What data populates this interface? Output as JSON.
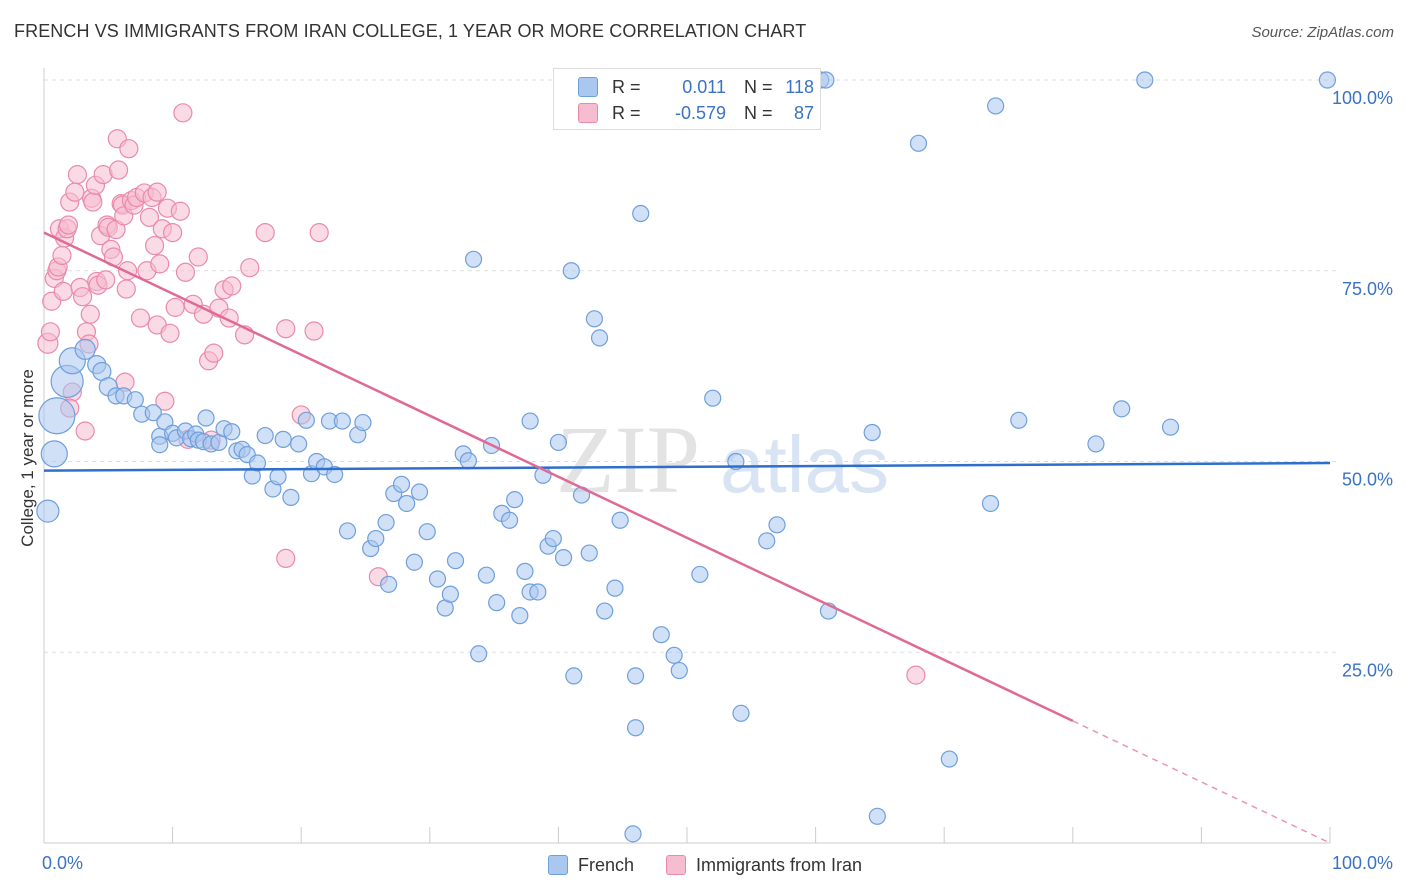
{
  "title": "FRENCH VS IMMIGRANTS FROM IRAN COLLEGE, 1 YEAR OR MORE CORRELATION CHART",
  "source": "Source: ZipAtlas.com",
  "watermark": {
    "zip": "ZIP",
    "atlas": "atlas"
  },
  "stats": {
    "french": {
      "r_label": "R =",
      "r_value": "0.011",
      "n_label": "N =",
      "n_value": "118"
    },
    "iran": {
      "r_label": "R =",
      "r_value": "-0.579",
      "n_label": "N =",
      "n_value": "87"
    }
  },
  "legend": {
    "french": "French",
    "iran": "Immigrants from Iran"
  },
  "colors": {
    "french_fill": "#a9c7ef",
    "french_stroke": "#6f9fdc",
    "french_line": "#2f6fcb",
    "iran_fill": "#f6bcd0",
    "iran_stroke": "#ea8aab",
    "iran_line": "#e06a96",
    "axis_text": "#3a72c4",
    "grid": "#dddddd"
  },
  "chart_data": {
    "type": "scatter",
    "xlabel": "",
    "ylabel": "College, 1 year or more",
    "xlim": [
      0,
      100
    ],
    "ylim": [
      0,
      100
    ],
    "x_tick_labels": [
      "0.0%",
      "100.0%"
    ],
    "y_ticks": [
      25,
      50,
      75,
      100
    ],
    "y_tick_labels": [
      "25.0%",
      "50.0%",
      "75.0%",
      "100.0%"
    ],
    "series": [
      {
        "name": "French",
        "trend": {
          "x0": 0,
          "y0": 48.8,
          "x1": 100,
          "y1": 49.8
        },
        "points": [
          [
            0.3,
            43.5,
            11
          ],
          [
            0.8,
            51,
            13
          ],
          [
            1.0,
            56,
            18
          ],
          [
            1.8,
            60.5,
            16
          ],
          [
            2.2,
            63.2,
            13
          ],
          [
            3.2,
            64.7,
            10
          ],
          [
            4.1,
            62.7,
            9
          ],
          [
            4.5,
            61.8,
            9
          ],
          [
            5.0,
            59.8,
            9
          ],
          [
            5.6,
            58.6,
            8
          ],
          [
            6.2,
            58.6,
            8
          ],
          [
            7.1,
            58.1,
            8
          ],
          [
            7.6,
            56.2,
            8
          ],
          [
            8.5,
            56.4,
            8
          ],
          [
            9.0,
            53.3,
            8
          ],
          [
            9.0,
            52.2,
            8
          ],
          [
            9.4,
            55.2,
            8
          ],
          [
            10.0,
            53.7,
            8
          ],
          [
            10.3,
            53.1,
            8
          ],
          [
            11.0,
            54.0,
            8
          ],
          [
            11.4,
            53.0,
            8
          ],
          [
            11.8,
            53.6,
            8
          ],
          [
            12.0,
            52.8,
            8
          ],
          [
            12.4,
            52.6,
            8
          ],
          [
            12.6,
            55.7,
            8
          ],
          [
            13.0,
            52.3,
            8
          ],
          [
            13.6,
            52.5,
            8
          ],
          [
            14.0,
            54.3,
            8
          ],
          [
            14.6,
            53.9,
            8
          ],
          [
            15.0,
            51.4,
            8
          ],
          [
            15.4,
            51.6,
            8
          ],
          [
            15.8,
            50.9,
            8
          ],
          [
            16.2,
            48.1,
            8
          ],
          [
            16.6,
            49.8,
            8
          ],
          [
            17.2,
            53.4,
            8
          ],
          [
            17.8,
            46.4,
            8
          ],
          [
            18.2,
            48.0,
            8
          ],
          [
            18.6,
            52.9,
            8
          ],
          [
            19.2,
            45.3,
            8
          ],
          [
            19.8,
            52.3,
            8
          ],
          [
            20.4,
            55.4,
            8
          ],
          [
            20.8,
            48.4,
            8
          ],
          [
            21.2,
            50.0,
            8
          ],
          [
            21.8,
            49.3,
            8
          ],
          [
            22.2,
            55.3,
            8
          ],
          [
            22.6,
            48.3,
            8
          ],
          [
            23.2,
            55.3,
            8
          ],
          [
            23.6,
            40.9,
            8
          ],
          [
            24.4,
            53.5,
            8
          ],
          [
            24.8,
            55.1,
            8
          ],
          [
            25.4,
            38.6,
            8
          ],
          [
            25.8,
            39.9,
            8
          ],
          [
            26.6,
            42.0,
            8
          ],
          [
            26.8,
            33.9,
            8
          ],
          [
            27.2,
            45.8,
            8
          ],
          [
            27.8,
            47.0,
            8
          ],
          [
            28.2,
            44.5,
            8
          ],
          [
            28.8,
            36.8,
            8
          ],
          [
            29.2,
            46.0,
            8
          ],
          [
            29.8,
            40.8,
            8
          ],
          [
            30.6,
            34.6,
            8
          ],
          [
            31.2,
            30.8,
            8
          ],
          [
            31.6,
            32.6,
            8
          ],
          [
            32.0,
            37.0,
            8
          ],
          [
            32.6,
            51.0,
            8
          ],
          [
            33.0,
            50.1,
            8
          ],
          [
            33.4,
            76.5,
            8
          ],
          [
            33.8,
            24.8,
            8
          ],
          [
            34.4,
            35.1,
            8
          ],
          [
            34.8,
            52.1,
            8
          ],
          [
            35.2,
            31.5,
            8
          ],
          [
            35.6,
            43.2,
            8
          ],
          [
            36.2,
            42.3,
            8
          ],
          [
            36.6,
            45.0,
            8
          ],
          [
            37.0,
            29.8,
            8
          ],
          [
            37.4,
            35.6,
            8
          ],
          [
            37.8,
            55.3,
            8
          ],
          [
            37.8,
            32.9,
            8
          ],
          [
            38.4,
            32.9,
            8
          ],
          [
            38.8,
            48.2,
            8
          ],
          [
            39.2,
            38.9,
            8
          ],
          [
            39.6,
            39.9,
            8
          ],
          [
            40.0,
            52.5,
            8
          ],
          [
            40.4,
            37.4,
            8
          ],
          [
            41.0,
            75.0,
            8
          ],
          [
            41.2,
            21.9,
            8
          ],
          [
            41.8,
            45.6,
            8
          ],
          [
            42.4,
            38.0,
            8
          ],
          [
            42.8,
            68.7,
            8
          ],
          [
            43.2,
            66.2,
            8
          ],
          [
            43.6,
            30.4,
            8
          ],
          [
            44.4,
            33.4,
            8
          ],
          [
            44.8,
            42.3,
            8
          ],
          [
            46.0,
            21.9,
            8
          ],
          [
            46.0,
            15.1,
            8
          ],
          [
            46.4,
            82.5,
            8
          ],
          [
            48.0,
            27.3,
            8
          ],
          [
            49.0,
            24.6,
            8
          ],
          [
            49.4,
            22.6,
            8
          ],
          [
            51.0,
            35.2,
            8
          ],
          [
            52.0,
            58.3,
            8
          ],
          [
            53.8,
            50.0,
            8
          ],
          [
            54.2,
            17.0,
            8
          ],
          [
            56.2,
            39.6,
            8
          ],
          [
            57.0,
            41.7,
            8
          ],
          [
            60.4,
            100.0,
            8
          ],
          [
            60.8,
            100.0,
            8
          ],
          [
            61.0,
            30.4,
            8
          ],
          [
            64.4,
            53.8,
            8
          ],
          [
            64.8,
            3.5,
            8
          ],
          [
            68.0,
            91.7,
            8
          ],
          [
            70.4,
            11.0,
            8
          ],
          [
            73.6,
            44.5,
            8
          ],
          [
            74.0,
            96.6,
            8
          ],
          [
            75.8,
            55.4,
            8
          ],
          [
            81.8,
            52.3,
            8
          ],
          [
            83.8,
            56.9,
            8
          ],
          [
            85.6,
            100.0,
            8
          ],
          [
            87.6,
            54.5,
            8
          ],
          [
            99.8,
            100.0,
            8
          ],
          [
            45.8,
            1.2,
            8
          ]
        ]
      },
      {
        "name": "Immigrants from Iran",
        "trend": {
          "x0": 0,
          "y0": 80,
          "x1": 80,
          "y1": 16,
          "dash_to": [
            100,
            0
          ]
        },
        "points": [
          [
            0.3,
            65.5,
            10
          ],
          [
            0.5,
            67.0,
            9
          ],
          [
            0.6,
            71.0,
            9
          ],
          [
            0.8,
            74.0,
            9
          ],
          [
            1.0,
            75.0,
            9
          ],
          [
            1.1,
            75.5,
            9
          ],
          [
            1.2,
            80.5,
            9
          ],
          [
            1.4,
            77.0,
            9
          ],
          [
            1.5,
            72.3,
            9
          ],
          [
            1.6,
            79.3,
            9
          ],
          [
            1.8,
            80.5,
            9
          ],
          [
            1.9,
            81.0,
            9
          ],
          [
            2.0,
            84.0,
            9
          ],
          [
            2.2,
            59.1,
            9
          ],
          [
            2.4,
            85.3,
            9
          ],
          [
            2.6,
            87.6,
            9
          ],
          [
            2.8,
            72.8,
            9
          ],
          [
            3.0,
            71.6,
            9
          ],
          [
            3.2,
            54.0,
            9
          ],
          [
            3.3,
            67.0,
            9
          ],
          [
            3.5,
            65.4,
            9
          ],
          [
            3.6,
            69.3,
            9
          ],
          [
            3.7,
            84.5,
            9
          ],
          [
            3.8,
            84.0,
            9
          ],
          [
            4.0,
            86.2,
            9
          ],
          [
            4.1,
            73.6,
            9
          ],
          [
            4.2,
            73.1,
            9
          ],
          [
            4.4,
            79.6,
            9
          ],
          [
            4.6,
            87.6,
            9
          ],
          [
            4.8,
            73.8,
            9
          ],
          [
            4.9,
            81.0,
            9
          ],
          [
            5.0,
            80.7,
            9
          ],
          [
            5.2,
            77.8,
            9
          ],
          [
            5.4,
            76.8,
            9
          ],
          [
            5.6,
            80.4,
            9
          ],
          [
            5.7,
            92.3,
            9
          ],
          [
            5.8,
            88.2,
            9
          ],
          [
            6.0,
            83.8,
            9
          ],
          [
            6.1,
            83.6,
            9
          ],
          [
            6.2,
            82.2,
            9
          ],
          [
            6.3,
            60.4,
            9
          ],
          [
            6.4,
            72.6,
            9
          ],
          [
            6.5,
            75.0,
            9
          ],
          [
            6.6,
            91.0,
            9
          ],
          [
            6.8,
            84.2,
            9
          ],
          [
            7.0,
            83.6,
            9
          ],
          [
            7.2,
            84.6,
            9
          ],
          [
            7.5,
            68.8,
            9
          ],
          [
            7.8,
            85.2,
            9
          ],
          [
            8.0,
            75.0,
            9
          ],
          [
            8.2,
            82.0,
            9
          ],
          [
            8.4,
            84.6,
            9
          ],
          [
            8.6,
            78.3,
            9
          ],
          [
            8.8,
            85.3,
            9
          ],
          [
            8.8,
            67.9,
            9
          ],
          [
            9.0,
            75.9,
            9
          ],
          [
            9.2,
            80.5,
            9
          ],
          [
            9.4,
            57.9,
            9
          ],
          [
            9.6,
            83.2,
            9
          ],
          [
            9.8,
            66.8,
            9
          ],
          [
            10.0,
            80.0,
            9
          ],
          [
            10.2,
            70.2,
            9
          ],
          [
            10.6,
            82.8,
            9
          ],
          [
            10.8,
            95.7,
            9
          ],
          [
            11.0,
            74.8,
            9
          ],
          [
            11.2,
            52.9,
            9
          ],
          [
            11.6,
            70.6,
            9
          ],
          [
            12.0,
            76.8,
            9
          ],
          [
            12.4,
            69.3,
            9
          ],
          [
            12.8,
            63.2,
            9
          ],
          [
            13.2,
            64.2,
            9
          ],
          [
            13.6,
            70.1,
            9
          ],
          [
            14.0,
            72.5,
            9
          ],
          [
            14.4,
            68.8,
            9
          ],
          [
            14.6,
            73.0,
            9
          ],
          [
            15.6,
            66.6,
            9
          ],
          [
            16.0,
            75.4,
            9
          ],
          [
            18.8,
            37.3,
            9
          ],
          [
            18.8,
            67.4,
            9
          ],
          [
            20.0,
            56.1,
            9
          ],
          [
            21.0,
            67.1,
            9
          ],
          [
            21.4,
            80.0,
            9
          ],
          [
            26.0,
            34.9,
            9
          ],
          [
            67.8,
            22.0,
            9
          ],
          [
            13.0,
            52.8,
            9
          ],
          [
            17.2,
            80.0,
            9
          ],
          [
            2.0,
            57.0,
            9
          ]
        ]
      }
    ]
  }
}
